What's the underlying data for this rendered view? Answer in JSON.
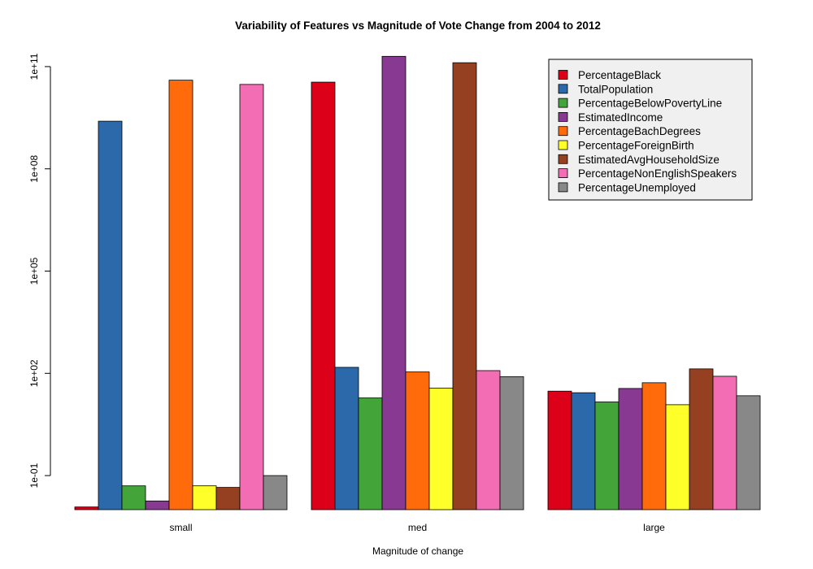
{
  "chart_data": {
    "type": "bar",
    "title": "Variability of Features vs Magnitude of Vote Change from 2004 to 2012",
    "xlabel": "Magnitude of change",
    "ylabel": "",
    "y_scale": "log10",
    "ylim": [
      0.01,
      1000000000000.0
    ],
    "y_ticks": [
      0.1,
      100,
      100000,
      100000000,
      100000000000
    ],
    "y_tick_labels": [
      "1e-01",
      "1e+02",
      "1e+05",
      "1e+08",
      "1e+11"
    ],
    "categories": [
      "small",
      "med",
      "large"
    ],
    "legend_position": "top-right",
    "grid": false,
    "series": [
      {
        "name": "PercentageBlack",
        "color": "#DC0019",
        "values": [
          0.012,
          35000000000.0,
          30
        ]
      },
      {
        "name": "TotalPopulation",
        "color": "#2B69AA",
        "values": [
          2500000000.0,
          150,
          27
        ]
      },
      {
        "name": "PercentageBelowPovertyLine",
        "color": "#43A43A",
        "values": [
          0.05,
          19,
          14.5
        ]
      },
      {
        "name": "EstimatedIncome",
        "color": "#883A92",
        "values": [
          0.018,
          200000000000.0,
          36
        ]
      },
      {
        "name": "PercentageBachDegrees",
        "color": "#FF6A0A",
        "values": [
          40000000000.0,
          110,
          53
        ]
      },
      {
        "name": "PercentageForeignBirth",
        "color": "#FFFF2A",
        "values": [
          0.05,
          37,
          12
        ]
      },
      {
        "name": "EstimatedAvgHouseholdSize",
        "color": "#954020",
        "values": [
          0.045,
          130000000000.0,
          135
        ]
      },
      {
        "name": "PercentageNonEnglishSpeakers",
        "color": "#F36DB4",
        "values": [
          30000000000.0,
          120,
          82
        ]
      },
      {
        "name": "PercentageUnemployed",
        "color": "#888888",
        "values": [
          0.1,
          80,
          22
        ]
      }
    ]
  }
}
